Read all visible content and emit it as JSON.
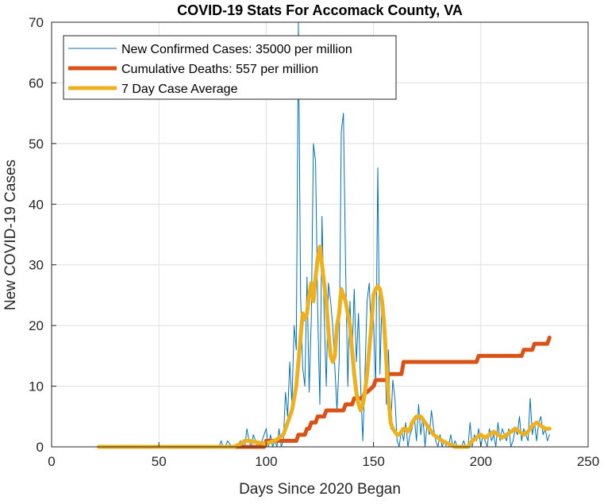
{
  "chart_data": {
    "type": "line",
    "title": "COVID-19 Stats For Accomack County, VA",
    "xlabel": "Days Since 2020 Began",
    "ylabel": "New COVID-19 Cases",
    "xlim": [
      0,
      250
    ],
    "ylim": [
      0,
      70
    ],
    "xticks": [
      0,
      50,
      100,
      150,
      200,
      250
    ],
    "yticks": [
      0,
      10,
      20,
      30,
      40,
      50,
      60,
      70
    ],
    "grid": true,
    "legend_position": "top-left",
    "series": [
      {
        "name": "New Confirmed Cases: 35000 per million",
        "color": "#0072BD",
        "line_width": "thin",
        "x": [
          22,
          30,
          40,
          50,
          60,
          70,
          78,
          79,
          80,
          81,
          82,
          84,
          86,
          88,
          90,
          91,
          92,
          93,
          94,
          96,
          98,
          100,
          101,
          102,
          103,
          104,
          105,
          106,
          107,
          108,
          109,
          110,
          111,
          112,
          113,
          114,
          115,
          116,
          117,
          118,
          119,
          120,
          121,
          122,
          123,
          124,
          125,
          126,
          127,
          128,
          129,
          130,
          131,
          132,
          133,
          134,
          135,
          136,
          137,
          138,
          139,
          140,
          141,
          142,
          143,
          144,
          145,
          146,
          147,
          148,
          149,
          150,
          151,
          152,
          153,
          154,
          155,
          156,
          157,
          158,
          159,
          160,
          161,
          162,
          163,
          164,
          165,
          166,
          167,
          168,
          169,
          170,
          171,
          172,
          173,
          174,
          175,
          176,
          177,
          178,
          179,
          180,
          181,
          182,
          183,
          184,
          185,
          186,
          187,
          188,
          189,
          190,
          191,
          192,
          193,
          194,
          195,
          196,
          197,
          198,
          199,
          200,
          201,
          202,
          203,
          204,
          205,
          206,
          207,
          208,
          209,
          210,
          211,
          212,
          213,
          214,
          215,
          216,
          217,
          218,
          219,
          220,
          221,
          222,
          223,
          224,
          225,
          226,
          227,
          228,
          229,
          230,
          231,
          232
        ],
        "values": [
          0,
          0,
          0,
          0,
          0,
          0,
          0,
          1,
          0,
          0,
          1,
          0,
          0,
          1,
          0,
          3,
          1,
          0,
          2,
          0,
          1,
          3,
          0,
          2,
          0,
          1,
          0,
          3,
          0,
          1,
          9,
          5,
          14,
          7,
          20,
          16,
          70,
          25,
          13,
          10,
          28,
          9,
          21,
          50,
          47,
          22,
          7,
          38,
          22,
          10,
          27,
          24,
          20,
          13,
          6,
          14,
          52,
          55,
          30,
          10,
          24,
          15,
          26,
          14,
          22,
          10,
          1,
          12,
          24,
          27,
          18,
          21,
          10,
          46,
          12,
          25,
          20,
          7,
          16,
          3,
          11,
          8,
          1,
          0,
          3,
          1,
          4,
          0,
          2,
          3,
          5,
          1,
          7,
          2,
          5,
          0,
          4,
          2,
          6,
          3,
          1,
          0,
          2,
          0,
          1,
          0,
          0,
          2,
          0,
          1,
          0,
          0,
          0,
          1,
          0,
          0,
          4,
          0,
          2,
          1,
          3,
          0,
          2,
          1,
          0,
          3,
          1,
          2,
          0,
          4,
          1,
          3,
          2,
          1,
          3,
          0,
          1,
          3,
          2,
          5,
          1,
          3,
          2,
          1,
          8,
          2,
          4,
          1,
          4,
          5,
          2,
          3,
          1,
          2
        ],
        "values_note_removed": true
      },
      {
        "name": "Cumulative Deaths: 557 per million",
        "color": "#D95319",
        "line_width": "thick",
        "x": [
          22,
          99,
          100,
          101,
          110,
          111,
          114,
          115,
          118,
          119,
          120,
          121,
          123,
          124,
          127,
          128,
          136,
          137,
          140,
          141,
          145,
          146,
          147,
          150,
          151,
          156,
          157,
          158,
          163,
          164,
          195,
          196,
          197,
          198,
          199,
          200,
          218,
          219,
          220,
          221,
          224,
          225,
          231,
          232
        ],
        "values": [
          0,
          0,
          1,
          1,
          1,
          1,
          1,
          2,
          2,
          3,
          3,
          4,
          4,
          5,
          5,
          6,
          6,
          7,
          7,
          8,
          8,
          9,
          9,
          10,
          11,
          11,
          12,
          12,
          12,
          14,
          14,
          14,
          14,
          14,
          15,
          15,
          15,
          15,
          16,
          16,
          16,
          17,
          17,
          18
        ]
      },
      {
        "name": "7 Day Case Average",
        "color": "#EDB120",
        "line_width": "thick",
        "x": [
          22,
          40,
          60,
          80,
          85,
          88,
          90,
          92,
          95,
          98,
          100,
          102,
          104,
          106,
          108,
          110,
          112,
          114,
          115,
          116,
          117,
          118,
          119,
          120,
          121,
          122,
          123,
          124,
          125,
          126,
          127,
          128,
          129,
          130,
          131,
          132,
          133,
          134,
          135,
          136,
          137,
          138,
          139,
          140,
          141,
          142,
          143,
          144,
          145,
          146,
          147,
          148,
          149,
          150,
          151,
          152,
          153,
          154,
          155,
          156,
          157,
          158,
          159,
          160,
          161,
          162,
          163,
          164,
          165,
          166,
          167,
          168,
          170,
          172,
          174,
          176,
          178,
          180,
          182,
          185,
          188,
          190,
          192,
          194,
          196,
          198,
          200,
          202,
          204,
          206,
          208,
          210,
          212,
          214,
          216,
          218,
          220,
          222,
          224,
          226,
          228,
          230,
          232
        ],
        "values": [
          0,
          0,
          0,
          0,
          0,
          0.5,
          1,
          1,
          0.8,
          0.6,
          0.5,
          0.8,
          1,
          1.5,
          2,
          4,
          6,
          10,
          14,
          18,
          22,
          21,
          22,
          25,
          27,
          24,
          28,
          31,
          33,
          30,
          27,
          24,
          19,
          15,
          14,
          15,
          20,
          22,
          26,
          25,
          24,
          22,
          20,
          16,
          12,
          9,
          7,
          6,
          7,
          9,
          12,
          16,
          20,
          25,
          26,
          26.5,
          26,
          24,
          20,
          14,
          8,
          4,
          3,
          2.5,
          2,
          2,
          2.5,
          3,
          3,
          2.5,
          3,
          4,
          5,
          5,
          4,
          3,
          2,
          1.5,
          1,
          0.5,
          0,
          0,
          0,
          0,
          1,
          1.5,
          2,
          1.5,
          2,
          2.5,
          2,
          1.5,
          2,
          2.5,
          3,
          2.5,
          2,
          2.5,
          3.5,
          4,
          3.5,
          3,
          3
        ]
      }
    ]
  }
}
